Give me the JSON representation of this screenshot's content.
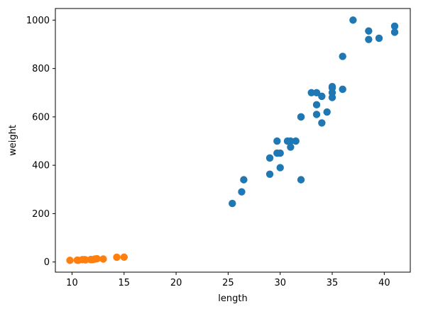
{
  "chart_data": {
    "type": "scatter",
    "xlabel": "length",
    "ylabel": "weight",
    "xlim": [
      8.4,
      42.5
    ],
    "ylim": [
      -42,
      1048
    ],
    "xticks": [
      10,
      15,
      20,
      25,
      30,
      35,
      40
    ],
    "yticks": [
      0,
      200,
      400,
      600,
      800,
      1000
    ],
    "grid": false,
    "series": [
      {
        "color": "#1f77b4",
        "points": [
          [
            25.4,
            242
          ],
          [
            26.3,
            290
          ],
          [
            26.5,
            340
          ],
          [
            29.0,
            363
          ],
          [
            29.0,
            430
          ],
          [
            29.7,
            450
          ],
          [
            29.7,
            500
          ],
          [
            30.0,
            390
          ],
          [
            30.0,
            450
          ],
          [
            30.7,
            500
          ],
          [
            31.0,
            475
          ],
          [
            31.0,
            500
          ],
          [
            31.5,
            500
          ],
          [
            32.0,
            340
          ],
          [
            32.0,
            600
          ],
          [
            32.0,
            600
          ],
          [
            33.0,
            700
          ],
          [
            33.5,
            700
          ],
          [
            33.5,
            610
          ],
          [
            33.5,
            650
          ],
          [
            34.0,
            575
          ],
          [
            34.0,
            685
          ],
          [
            34.5,
            620
          ],
          [
            35.0,
            680
          ],
          [
            35.0,
            700
          ],
          [
            35.0,
            725
          ],
          [
            35.0,
            720
          ],
          [
            36.0,
            714
          ],
          [
            36.0,
            850
          ],
          [
            37.0,
            1000
          ],
          [
            38.5,
            920
          ],
          [
            38.5,
            955
          ],
          [
            39.5,
            925
          ],
          [
            41.0,
            975
          ],
          [
            41.0,
            950
          ]
        ]
      },
      {
        "color": "#ff7f0e",
        "points": [
          [
            9.8,
            6.7
          ],
          [
            10.5,
            7.5
          ],
          [
            10.6,
            7.0
          ],
          [
            11.0,
            9.7
          ],
          [
            11.2,
            9.8
          ],
          [
            11.3,
            8.7
          ],
          [
            11.8,
            10.0
          ],
          [
            11.8,
            9.9
          ],
          [
            12.0,
            9.8
          ],
          [
            12.2,
            12.2
          ],
          [
            12.4,
            13.4
          ],
          [
            13.0,
            12.2
          ],
          [
            14.3,
            19.7
          ],
          [
            15.0,
            19.9
          ]
        ]
      }
    ]
  }
}
